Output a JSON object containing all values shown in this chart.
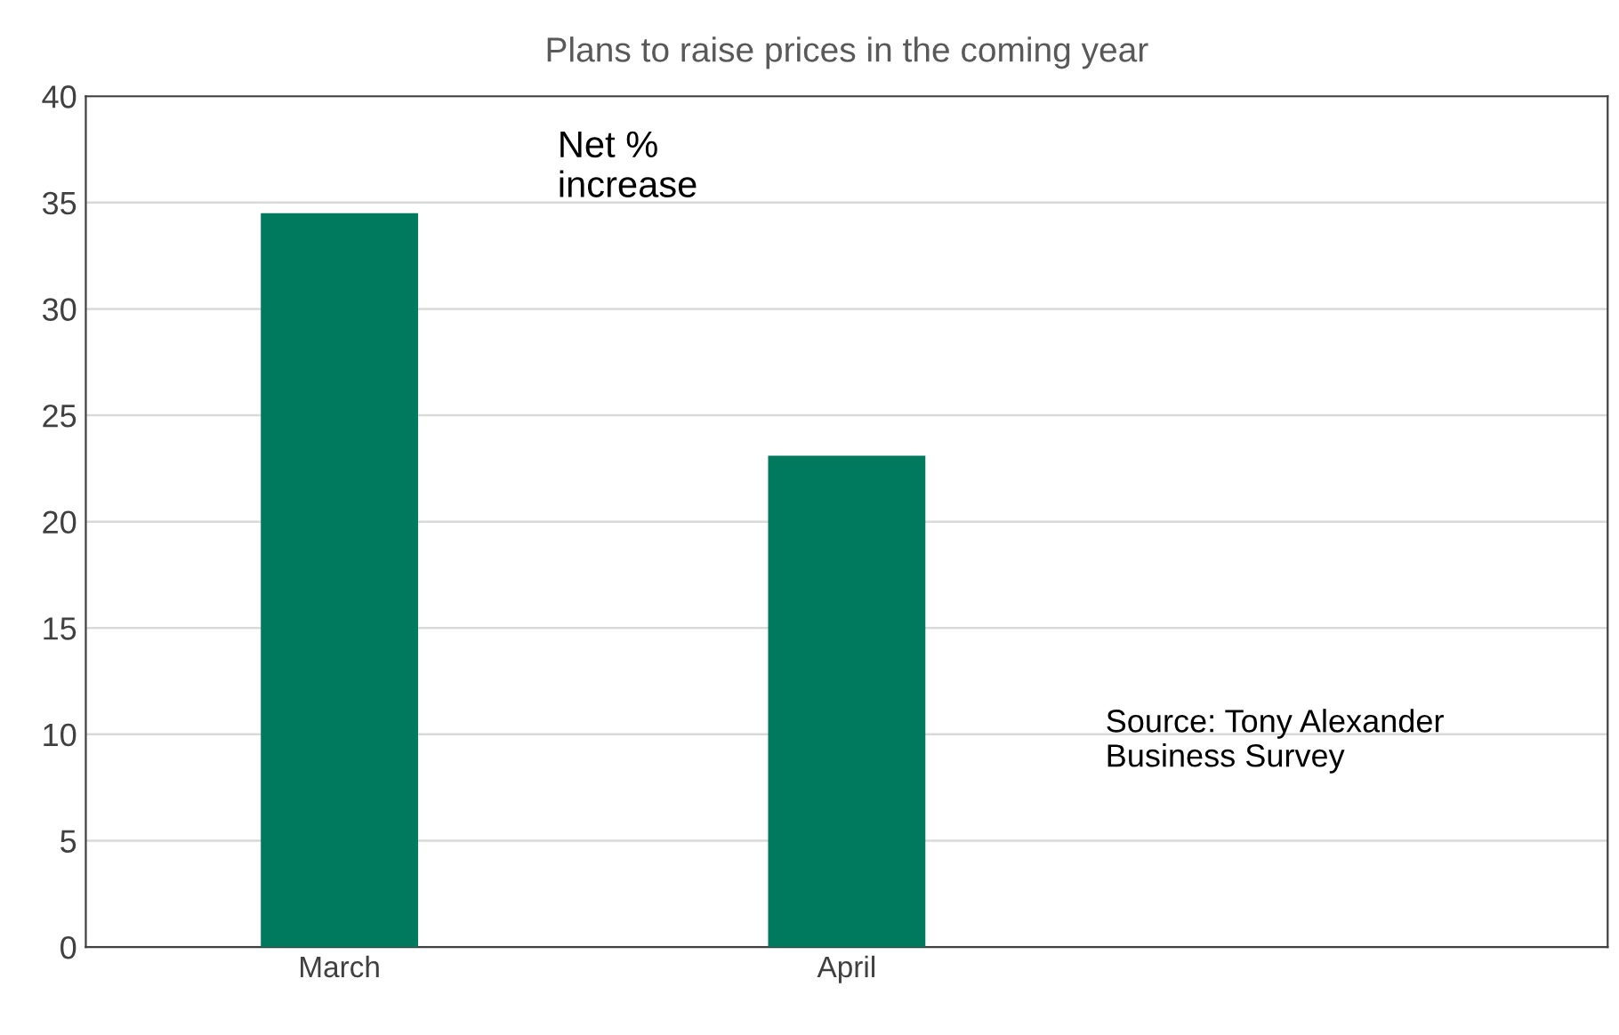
{
  "chart_data": {
    "type": "bar",
    "title": "Plans to raise prices in the coming year",
    "categories": [
      "March",
      "April",
      null
    ],
    "values": [
      34.5,
      23.1,
      null
    ],
    "color": "#007a5e",
    "ylim": [
      0,
      40
    ],
    "yticks": [
      0,
      5,
      10,
      15,
      20,
      25,
      30,
      35,
      40
    ],
    "grid": "y",
    "annotations": [
      "Net %\nincrease",
      "Source: Tony Alexander\nBusiness Survey"
    ]
  }
}
